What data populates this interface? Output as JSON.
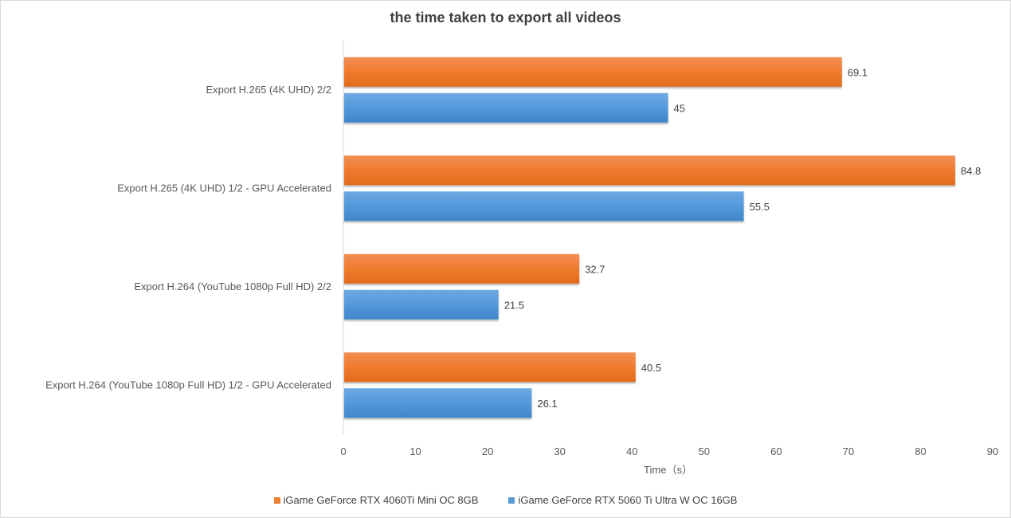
{
  "chart_data": {
    "type": "bar",
    "orientation": "horizontal",
    "title": "the time taken to export all  videos",
    "xlabel": "Time（s）",
    "ylabel": "",
    "xlim": [
      0,
      90
    ],
    "xticks": [
      0,
      10,
      20,
      30,
      40,
      50,
      60,
      70,
      80,
      90
    ],
    "grid": false,
    "legend_position": "bottom",
    "categories": [
      "Export H.265 (4K UHD) 2/2",
      "Export H.265 (4K UHD) 1/2 - GPU Accelerated",
      "Export H.264 (YouTube 1080p Full HD) 2/2",
      "Export H.264 (YouTube 1080p Full HD) 1/2 - GPU Accelerated"
    ],
    "series": [
      {
        "name": "iGame GeForce RTX 4060Ti Mini OC 8GB",
        "color": "#ED7D31",
        "values": [
          69.1,
          84.8,
          32.7,
          40.5
        ]
      },
      {
        "name": "iGame GeForce RTX 5060 Ti Ultra W OC 16GB",
        "color": "#5B9BD5",
        "values": [
          45,
          55.5,
          21.5,
          26.1
        ]
      }
    ]
  }
}
